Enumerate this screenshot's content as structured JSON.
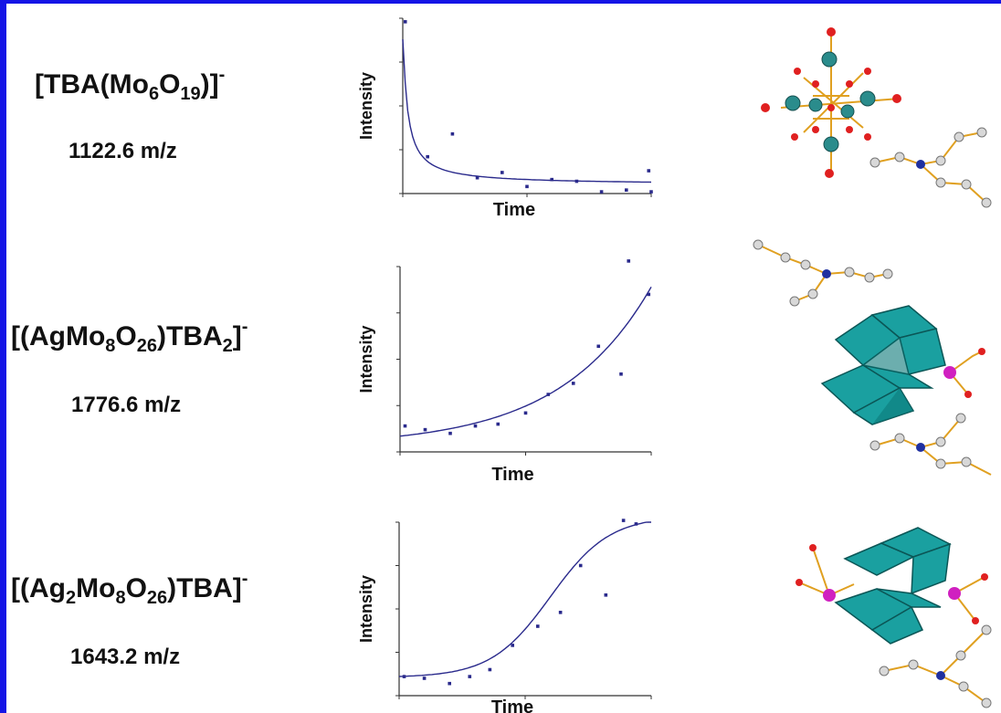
{
  "species": [
    {
      "formula_parts": [
        {
          "t": "[TBA(Mo",
          "s": "n"
        },
        {
          "t": "6",
          "s": "sub"
        },
        {
          "t": "O",
          "s": "n"
        },
        {
          "t": "19",
          "s": "sub"
        },
        {
          "t": ")]",
          "s": "n"
        },
        {
          "t": "-",
          "s": "sup"
        }
      ],
      "mz": "1122.6 m/z"
    },
    {
      "formula_parts": [
        {
          "t": "[(AgMo",
          "s": "n"
        },
        {
          "t": "8",
          "s": "sub"
        },
        {
          "t": "O",
          "s": "n"
        },
        {
          "t": "26",
          "s": "sub"
        },
        {
          "t": ")TBA",
          "s": "n"
        },
        {
          "t": "2",
          "s": "sub"
        },
        {
          "t": "]",
          "s": "n"
        },
        {
          "t": "-",
          "s": "sup"
        }
      ],
      "mz": "1776.6 m/z"
    },
    {
      "formula_parts": [
        {
          "t": "[(Ag",
          "s": "n"
        },
        {
          "t": "2",
          "s": "sub"
        },
        {
          "t": "Mo",
          "s": "n"
        },
        {
          "t": "8",
          "s": "sub"
        },
        {
          "t": "O",
          "s": "n"
        },
        {
          "t": "26",
          "s": "sub"
        },
        {
          "t": ")TBA]",
          "s": "n"
        },
        {
          "t": "-",
          "s": "sup"
        }
      ],
      "mz": "1643.2 m/z"
    }
  ],
  "colors": {
    "frame": "#1414e6",
    "fit_line": "#2a2a8c",
    "points": "#2a2a8c",
    "mo_atom": "#2a8c8c",
    "o_atom": "#e02020",
    "ag_atom": "#d020c0",
    "n_atom": "#2030a0",
    "c_atom": "#d8d8d8",
    "bond": "#e0a020",
    "polyhedron": "#1aa0a0"
  },
  "chart_data": [
    {
      "type": "scatter",
      "xlabel": "Time",
      "ylabel": "Intensity",
      "xlim": [
        0,
        10
      ],
      "ylim": [
        0,
        10
      ],
      "points": {
        "x": [
          0.1,
          1,
          2,
          3,
          4,
          5,
          6,
          7,
          8,
          9,
          10
        ],
        "y": [
          9.8,
          2.1,
          3.4,
          0.9,
          1.2,
          0.4,
          0.8,
          0.7,
          0.1,
          0.2,
          0.1
        ]
      },
      "fit": "decay",
      "extra_points": {
        "x": [
          9.9
        ],
        "y": [
          1.3
        ]
      }
    },
    {
      "type": "scatter",
      "xlabel": "Time",
      "ylabel": "Intensity",
      "xlim": [
        0,
        10
      ],
      "ylim": [
        0,
        10
      ],
      "points": {
        "x": [
          0.2,
          1,
          2,
          3,
          3.9,
          5,
          5.9,
          6.9,
          7.9,
          8.8,
          9.9
        ],
        "y": [
          1.4,
          1.2,
          1.0,
          1.4,
          1.5,
          2.1,
          3.1,
          3.7,
          5.7,
          4.2,
          8.5
        ]
      },
      "extra_points": {
        "x": [
          9.1
        ],
        "y": [
          10.3
        ]
      },
      "fit": "exponential"
    },
    {
      "type": "scatter",
      "xlabel": "Time",
      "ylabel": "Intensity",
      "xlim": [
        0,
        10
      ],
      "ylim": [
        0,
        10
      ],
      "points": {
        "x": [
          0.2,
          1,
          2,
          2.8,
          3.6,
          4.5,
          5.5,
          6.4,
          7.2,
          8.2,
          8.9,
          9.4
        ],
        "y": [
          1.1,
          1.0,
          0.7,
          1.1,
          1.5,
          2.9,
          4.0,
          4.8,
          7.5,
          5.8,
          10.1,
          9.9
        ]
      },
      "fit": "sigmoid"
    }
  ]
}
